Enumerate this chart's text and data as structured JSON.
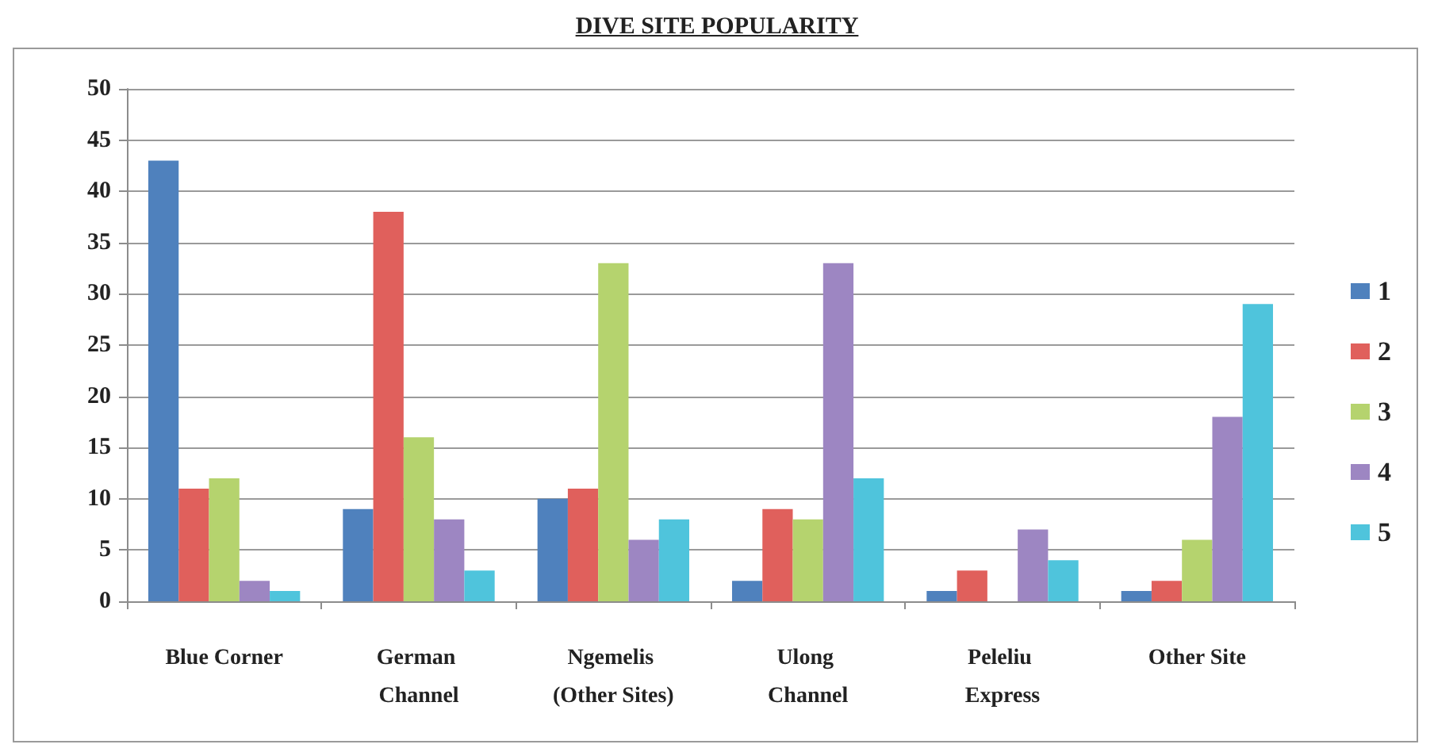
{
  "chart_data": {
    "type": "bar",
    "title": "DIVE SITE POPULARITY",
    "categories": [
      "Blue Corner",
      "German Channel",
      "Ngemelis (Other Sites)",
      "Ulong Channel",
      "Peleliu Express",
      "Other Site"
    ],
    "series": [
      {
        "name": "1",
        "color": "#4f81bd",
        "values": [
          43,
          9,
          10,
          2,
          1,
          1
        ]
      },
      {
        "name": "2",
        "color": "#e0605c",
        "values": [
          11,
          38,
          11,
          9,
          3,
          2
        ]
      },
      {
        "name": "3",
        "color": "#b5d36e",
        "values": [
          12,
          16,
          33,
          8,
          0,
          6
        ]
      },
      {
        "name": "4",
        "color": "#9d86c2",
        "values": [
          2,
          8,
          6,
          33,
          7,
          18
        ]
      },
      {
        "name": "5",
        "color": "#4fc4dc",
        "values": [
          1,
          3,
          8,
          12,
          4,
          29
        ]
      }
    ],
    "ylim": [
      0,
      50
    ],
    "yticks": [
      0,
      5,
      10,
      15,
      20,
      25,
      30,
      35,
      40,
      45,
      50
    ],
    "grid": "y",
    "legend": "right"
  }
}
